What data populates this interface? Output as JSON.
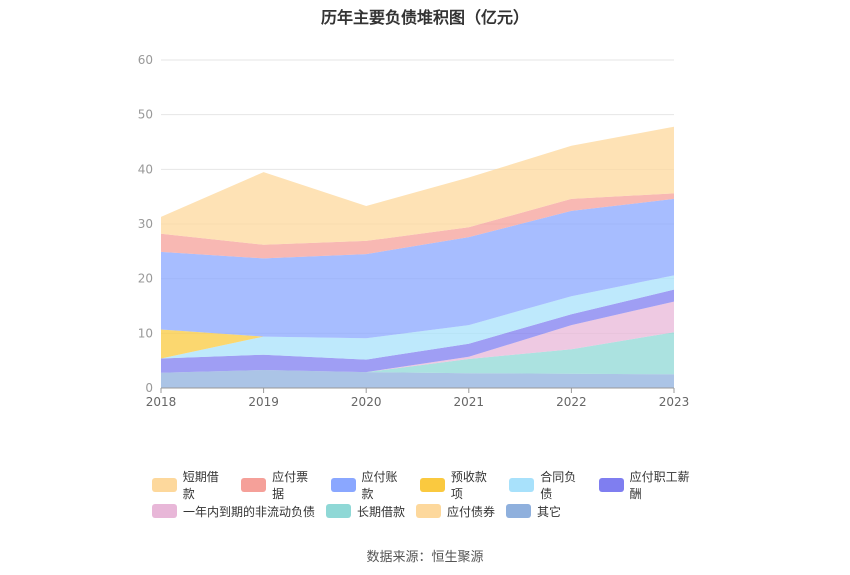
{
  "chart_data": {
    "type": "area",
    "stacked": true,
    "title": "历年主要负债堆积图（亿元）",
    "categories": [
      "2018",
      "2019",
      "2020",
      "2021",
      "2022",
      "2023"
    ],
    "ylim": [
      0,
      60
    ],
    "yticks": [
      0,
      10,
      20,
      30,
      40,
      50,
      60
    ],
    "grid": true,
    "legend_position": "bottom",
    "series": [
      {
        "name": "其它",
        "color": "#8fb0dd",
        "values": [
          2.8,
          3.3,
          2.9,
          2.7,
          2.6,
          2.5
        ]
      },
      {
        "name": "应付债券",
        "color": "#fdd89c",
        "values": [
          0,
          0,
          0,
          0,
          0,
          0
        ]
      },
      {
        "name": "长期借款",
        "color": "#8fd8d6",
        "values": [
          0,
          0,
          0,
          2.6,
          4.5,
          7.7
        ]
      },
      {
        "name": "一年内到期的非流动负债",
        "color": "#e8b7d8",
        "values": [
          0,
          0,
          0,
          0.4,
          4.4,
          5.6
        ]
      },
      {
        "name": "应付职工薪酬",
        "color": "#7f7ef0",
        "values": [
          2.6,
          2.8,
          2.3,
          2.4,
          2.0,
          2.2
        ]
      },
      {
        "name": "合同负债",
        "color": "#a8e1fb",
        "values": [
          0,
          3.3,
          3.9,
          3.4,
          3.3,
          2.6
        ]
      },
      {
        "name": "预收款项",
        "color": "#fac93f",
        "values": [
          5.3,
          0,
          0,
          0,
          0,
          0
        ]
      },
      {
        "name": "应付账款",
        "color": "#8aa7ff",
        "values": [
          14.2,
          14.3,
          15.4,
          16.1,
          15.6,
          14.0
        ]
      },
      {
        "name": "应付票据",
        "color": "#f5a099",
        "values": [
          3.3,
          2.5,
          2.4,
          1.8,
          2.2,
          1.0
        ]
      },
      {
        "name": "短期借款",
        "color": "#fdd89c",
        "values": [
          3.1,
          13.3,
          6.4,
          9.1,
          9.7,
          12.2
        ]
      }
    ],
    "legend_order": [
      "短期借款",
      "应付票据",
      "应付账款",
      "预收款项",
      "合同负债",
      "应付职工薪酬",
      "一年内到期的非流动负债",
      "长期借款",
      "应付债券",
      "其它"
    ]
  },
  "source_text": "数据来源：恒生聚源"
}
